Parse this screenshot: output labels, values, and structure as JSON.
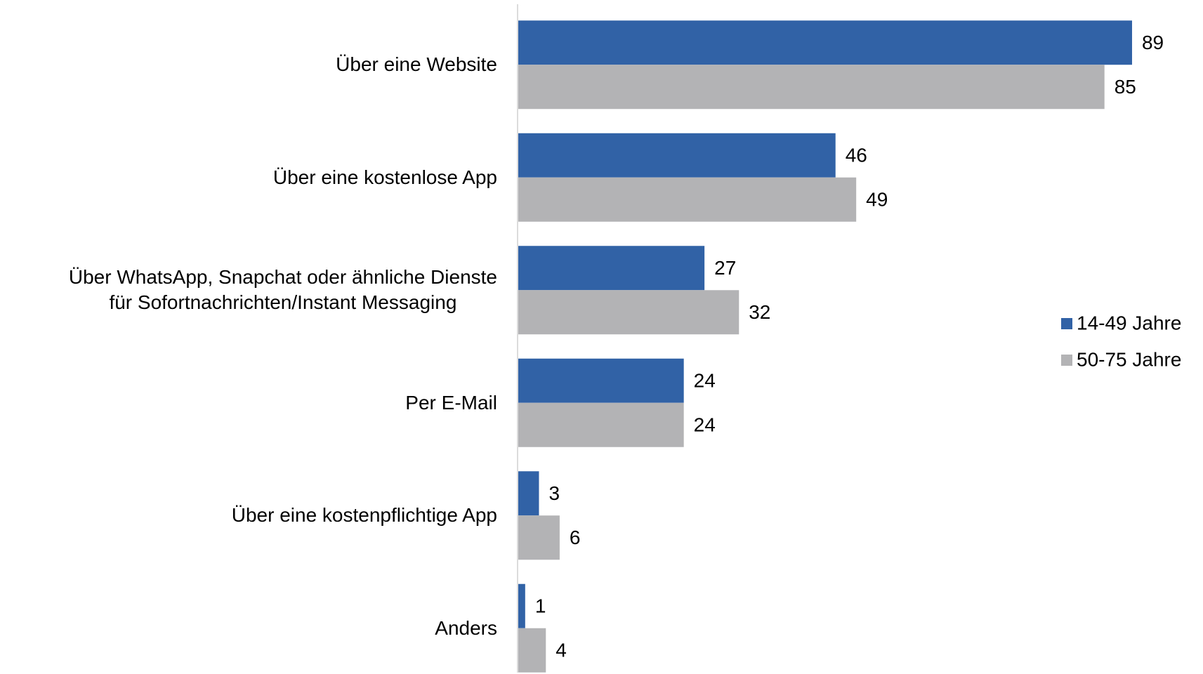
{
  "chart_data": {
    "type": "hbar",
    "categories": [
      "Über eine Website",
      "Über eine kostenlose App",
      "Über WhatsApp, Snapchat oder ähnliche Dienste\nfür Sofortnachrichten/Instant Messaging",
      "Per E-Mail",
      "Über eine kostenpflichtige App",
      "Anders"
    ],
    "series": [
      {
        "name": "14-49 Jahre",
        "color": "#3162a6",
        "values": [
          89,
          46,
          27,
          24,
          3,
          1
        ]
      },
      {
        "name": "50-75 Jahre",
        "color": "#b3b3b5",
        "values": [
          85,
          49,
          32,
          24,
          6,
          4
        ]
      }
    ],
    "legend": "right"
  }
}
